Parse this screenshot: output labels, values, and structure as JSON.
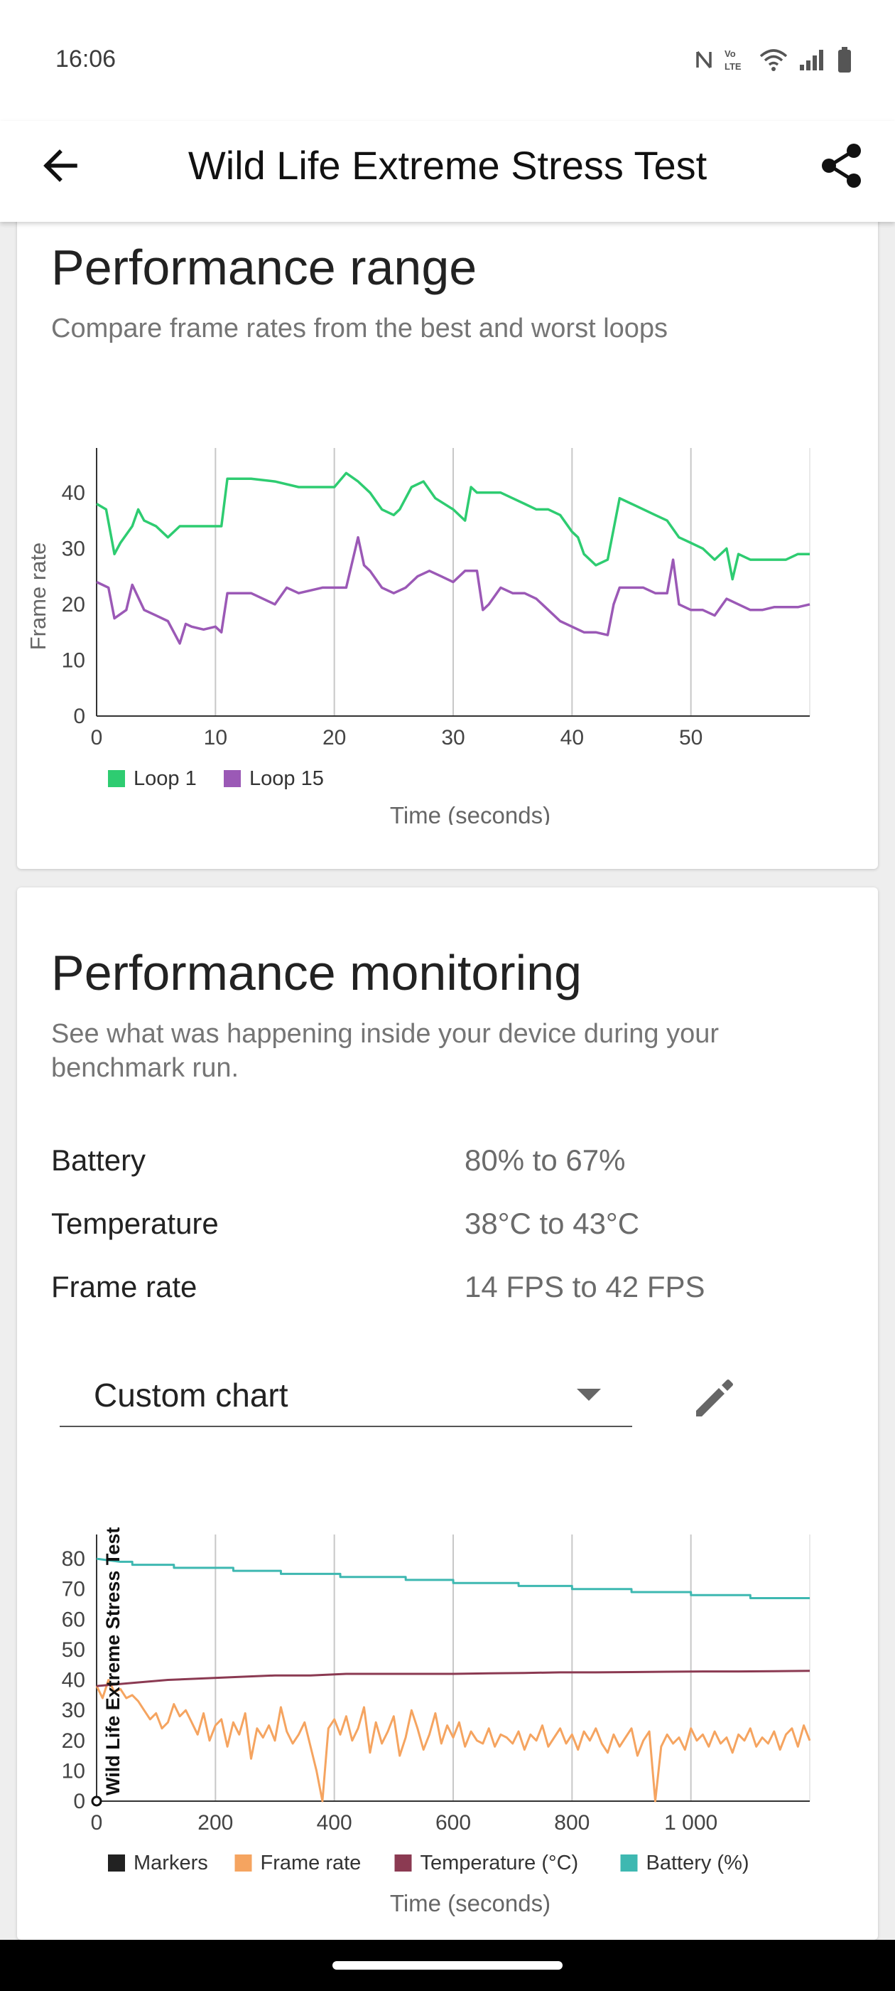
{
  "status_bar": {
    "time": "16:06",
    "icons": [
      "nfc-icon",
      "volte-icon",
      "wifi-icon",
      "signal-icon",
      "battery-icon"
    ]
  },
  "app_bar": {
    "title": "Wild Life Extreme Stress Test",
    "back_icon": "arrow-left-icon",
    "share_icon": "share-icon"
  },
  "performance_range": {
    "title": "Performance range",
    "subtitle": "Compare frame rates from the best and worst loops",
    "chart_data": {
      "type": "line",
      "xlabel": "Time (seconds)",
      "ylabel": "Frame rate",
      "xlim": [
        0,
        60
      ],
      "ylim": [
        0,
        48
      ],
      "x_ticks": [
        "0",
        "10",
        "20",
        "30",
        "40",
        "50"
      ],
      "y_ticks": [
        "0",
        "10",
        "20",
        "30",
        "40"
      ],
      "grid": "vertical",
      "legend_position": "bottom-left",
      "series": [
        {
          "name": "Loop 1",
          "color": "#2ecc71",
          "x": [
            0,
            0.8,
            1.5,
            2,
            3,
            3.5,
            4,
            5,
            6,
            7,
            8,
            9,
            10,
            10.5,
            11,
            13,
            15,
            17,
            19,
            20,
            21,
            22,
            23,
            24,
            25,
            25.5,
            26.5,
            27.5,
            28.5,
            30,
            31,
            31.5,
            32,
            33,
            34,
            35,
            36,
            37,
            38,
            39,
            40,
            40.5,
            41,
            42,
            43,
            44,
            45,
            47,
            48,
            49,
            50,
            51,
            52,
            53,
            53.5,
            54,
            55,
            56,
            57,
            58,
            59,
            60
          ],
          "y": [
            38,
            37,
            29,
            31,
            34,
            37,
            35,
            34,
            32,
            34,
            34,
            34,
            34,
            34,
            42.5,
            42.5,
            42,
            41,
            41,
            41,
            43.5,
            42,
            40,
            37,
            36,
            37,
            41,
            42,
            39,
            37,
            35,
            41,
            40,
            40,
            40,
            39,
            38,
            37,
            37,
            36,
            33,
            32,
            29,
            27,
            28,
            39,
            38,
            36,
            35,
            32,
            31,
            30,
            28,
            30,
            24.5,
            29,
            28,
            28,
            28,
            28,
            29,
            29
          ]
        },
        {
          "name": "Loop 15",
          "color": "#9b59b6",
          "x": [
            0,
            1,
            1.5,
            2.5,
            3,
            4,
            5,
            6,
            7,
            7.5,
            8,
            9,
            10,
            10.5,
            11,
            13,
            14,
            15,
            16,
            17,
            19,
            20,
            21,
            22,
            22.5,
            23,
            24,
            25,
            26,
            27,
            28,
            29,
            30,
            31,
            32,
            32.5,
            33,
            34,
            35,
            36,
            37,
            38,
            39,
            40,
            41,
            42,
            43,
            43.5,
            44,
            45,
            46,
            47,
            48,
            48.5,
            49,
            50,
            51,
            52,
            53,
            54,
            55,
            56,
            57,
            58,
            59,
            60
          ],
          "y": [
            24,
            23,
            17.5,
            19,
            23.5,
            19,
            18,
            17,
            13,
            16.5,
            16,
            15.5,
            16,
            15,
            22,
            22,
            21,
            20,
            23,
            22,
            23,
            23,
            23,
            32,
            27,
            26,
            23,
            22,
            23,
            25,
            26,
            25,
            24,
            26,
            26,
            19,
            20,
            23,
            22,
            22,
            21,
            19,
            17,
            16,
            15,
            15,
            14.5,
            20,
            23,
            23,
            23,
            22,
            22,
            28,
            20,
            19,
            19,
            18,
            21,
            20,
            19,
            19,
            19.5,
            19.5,
            19.5,
            20
          ]
        }
      ]
    }
  },
  "performance_monitoring": {
    "title": "Performance monitoring",
    "subtitle": "See what was happening inside your device during your benchmark run.",
    "stats": [
      {
        "label": "Battery",
        "value": "80% to 67%"
      },
      {
        "label": "Temperature",
        "value": "38°C to 43°C"
      },
      {
        "label": "Frame rate",
        "value": "14 FPS to 42 FPS"
      }
    ],
    "dropdown": {
      "selected": "Custom chart",
      "icon": "chevron-down-icon"
    },
    "edit_icon": "pencil-icon",
    "chart_data": {
      "type": "line",
      "xlabel": "Time (seconds)",
      "xlim": [
        0,
        1200
      ],
      "ylim": [
        0,
        88
      ],
      "x_ticks": [
        "0",
        "200",
        "400",
        "600",
        "800",
        "1 000"
      ],
      "y_ticks": [
        "0",
        "10",
        "20",
        "30",
        "40",
        "50",
        "60",
        "70",
        "80"
      ],
      "grid": "vertical",
      "legend_position": "bottom-left",
      "annotations": [
        {
          "type": "marker",
          "x": 0,
          "label": "Wild Life Extreme Stress Test"
        }
      ],
      "series": [
        {
          "name": "Markers",
          "color": "#222222",
          "x": [
            0
          ],
          "y": [
            0
          ]
        },
        {
          "name": "Frame rate",
          "color": "#f5a460",
          "x": [
            0,
            10,
            20,
            30,
            40,
            50,
            60,
            70,
            80,
            90,
            100,
            110,
            120,
            130,
            140,
            150,
            160,
            170,
            180,
            190,
            200,
            210,
            220,
            230,
            240,
            250,
            260,
            270,
            280,
            290,
            300,
            310,
            320,
            330,
            340,
            350,
            360,
            370,
            380,
            390,
            400,
            410,
            420,
            430,
            440,
            450,
            460,
            470,
            480,
            490,
            500,
            510,
            520,
            530,
            540,
            550,
            560,
            570,
            580,
            590,
            600,
            610,
            620,
            630,
            640,
            650,
            660,
            670,
            680,
            690,
            700,
            710,
            720,
            730,
            740,
            750,
            760,
            770,
            780,
            790,
            800,
            810,
            820,
            830,
            840,
            850,
            860,
            870,
            880,
            890,
            900,
            910,
            920,
            930,
            940,
            950,
            960,
            970,
            980,
            990,
            1000,
            1010,
            1020,
            1030,
            1040,
            1050,
            1060,
            1070,
            1080,
            1090,
            1100,
            1110,
            1120,
            1130,
            1140,
            1150,
            1160,
            1170,
            1180,
            1190,
            1200
          ],
          "y": [
            38,
            34,
            40,
            36,
            37,
            34,
            35,
            33,
            30,
            27,
            29,
            24,
            26,
            32,
            28,
            30,
            26,
            22,
            29,
            20,
            25,
            27,
            18,
            26,
            22,
            29,
            14,
            24,
            21,
            25,
            20,
            31,
            23,
            19,
            22,
            26,
            18,
            10,
            0,
            24,
            27,
            22,
            28,
            20,
            24,
            31,
            16,
            26,
            19,
            23,
            28,
            15,
            21,
            30,
            24,
            17,
            22,
            29,
            19,
            25,
            21,
            26,
            18,
            23,
            20,
            19,
            24,
            18,
            22,
            21,
            19,
            23,
            17,
            22,
            20,
            25,
            18,
            21,
            24,
            19,
            22,
            17,
            23,
            20,
            24,
            19,
            16,
            22,
            18,
            21,
            24,
            15,
            20,
            23,
            0,
            18,
            22,
            19,
            21,
            17,
            24,
            20,
            22,
            18,
            23,
            19,
            21,
            16,
            22,
            20,
            24,
            18,
            21,
            19,
            23,
            17,
            22,
            24,
            18,
            25,
            20
          ]
        },
        {
          "name": "Temperature (°C)",
          "color": "#8b3a52",
          "x": [
            0,
            60,
            120,
            180,
            240,
            300,
            360,
            420,
            480,
            540,
            600,
            660,
            720,
            780,
            840,
            900,
            960,
            1020,
            1080,
            1140,
            1200
          ],
          "y": [
            38,
            39,
            40,
            40.5,
            41,
            41.5,
            41.5,
            42,
            42,
            42,
            42,
            42.2,
            42.3,
            42.5,
            42.5,
            42.6,
            42.7,
            42.8,
            42.8,
            42.9,
            43
          ]
        },
        {
          "name": "Battery (%)",
          "color": "#3eb8b1",
          "x": [
            0,
            20,
            40,
            60,
            60.1,
            130,
            130.1,
            230,
            230.1,
            310,
            310.1,
            410,
            410.1,
            520,
            520.1,
            600,
            600.1,
            710,
            710.1,
            800,
            800.1,
            900,
            900.1,
            1000,
            1000.1,
            1100,
            1100.1,
            1200
          ],
          "y": [
            80,
            79.5,
            79,
            79,
            78,
            78,
            77,
            77,
            76,
            76,
            75,
            75,
            74,
            74,
            73,
            73,
            72,
            72,
            71,
            71,
            70,
            70,
            69,
            69,
            68,
            68,
            67,
            67
          ]
        }
      ]
    }
  }
}
